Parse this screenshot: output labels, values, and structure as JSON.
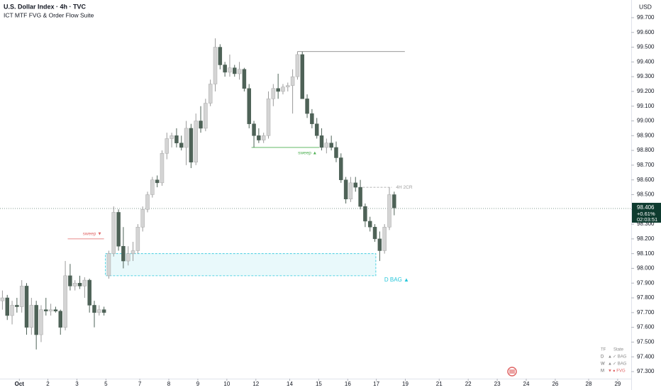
{
  "chart_data": {
    "type": "candlestick",
    "title": "U.S. Dollar Index · 4h · TVC",
    "subtitle": "ICT MTF FVG & Order Flow Suite",
    "y_axis_label": "USD",
    "up_color": "#d4d4d4",
    "down_color": "#4e6257",
    "ylim": [
      97.252,
      99.82
    ],
    "yticks": [
      {
        "value": 97.3,
        "label": "97.300"
      },
      {
        "value": 97.4,
        "label": "97.400"
      },
      {
        "value": 97.5,
        "label": "97.500"
      },
      {
        "value": 97.6,
        "label": "97.600"
      },
      {
        "value": 97.7,
        "label": "97.700"
      },
      {
        "value": 97.8,
        "label": "97.800"
      },
      {
        "value": 97.9,
        "label": "97.900"
      },
      {
        "value": 98.0,
        "label": "98.000"
      },
      {
        "value": 98.1,
        "label": "98.100"
      },
      {
        "value": 98.2,
        "label": "98.200"
      },
      {
        "value": 98.3,
        "label": "98.300"
      },
      {
        "value": 98.4,
        "label": "98.400"
      },
      {
        "value": 98.5,
        "label": "98.500"
      },
      {
        "value": 98.6,
        "label": "98.600"
      },
      {
        "value": 98.7,
        "label": "98.700"
      },
      {
        "value": 98.8,
        "label": "98.800"
      },
      {
        "value": 98.9,
        "label": "98.900"
      },
      {
        "value": 99.0,
        "label": "99.000"
      },
      {
        "value": 99.1,
        "label": "99.100"
      },
      {
        "value": 99.2,
        "label": "99.200"
      },
      {
        "value": 99.3,
        "label": "99.300"
      },
      {
        "value": 99.4,
        "label": "99.400"
      },
      {
        "value": 99.5,
        "label": "99.500"
      },
      {
        "value": 99.6,
        "label": "99.600"
      },
      {
        "value": 99.7,
        "label": "99.700"
      }
    ],
    "xlim": [
      -0.5,
      130
    ],
    "xticks": [
      {
        "value": 3.5,
        "label": "Oct"
      },
      {
        "value": 9.4,
        "label": "2"
      },
      {
        "value": 15.4,
        "label": "3"
      },
      {
        "value": 21.4,
        "label": "5"
      },
      {
        "value": 28.4,
        "label": "7"
      },
      {
        "value": 34.4,
        "label": "8"
      },
      {
        "value": 40.4,
        "label": "9"
      },
      {
        "value": 46.4,
        "label": "10"
      },
      {
        "value": 52.4,
        "label": "12"
      },
      {
        "value": 59.4,
        "label": "14"
      },
      {
        "value": 65.4,
        "label": "15"
      },
      {
        "value": 71.4,
        "label": "16"
      },
      {
        "value": 77.3,
        "label": "17"
      },
      {
        "value": 83.3,
        "label": "19"
      },
      {
        "value": 90.3,
        "label": "21"
      },
      {
        "value": 96.3,
        "label": "22"
      },
      {
        "value": 102.3,
        "label": "23"
      },
      {
        "value": 108.3,
        "label": "24"
      },
      {
        "value": 114.3,
        "label": "26"
      },
      {
        "value": 121.2,
        "label": "28"
      },
      {
        "value": 127.2,
        "label": "29"
      }
    ],
    "x": [
      0,
      1,
      2,
      3,
      4,
      5,
      6,
      7,
      8,
      9,
      10,
      11,
      12,
      13,
      14,
      15,
      16,
      17,
      18,
      19,
      20,
      21,
      22,
      23,
      24,
      25,
      26,
      27,
      28,
      29,
      30,
      31,
      32,
      33,
      34,
      35,
      36,
      37,
      38,
      39,
      40,
      41,
      42,
      43,
      44,
      45,
      46,
      47,
      48,
      49,
      50,
      51,
      52,
      53,
      54,
      55,
      56,
      57,
      58,
      59,
      60,
      61,
      62,
      63,
      64,
      65,
      66,
      67,
      68,
      69,
      70,
      71,
      72,
      73,
      74,
      75,
      76,
      77,
      78,
      79,
      80,
      81
    ],
    "open": [
      97.78,
      97.8,
      97.68,
      97.75,
      97.74,
      97.88,
      97.6,
      97.75,
      97.55,
      97.72,
      97.71,
      97.72,
      97.71,
      97.6,
      97.95,
      97.88,
      97.9,
      97.88,
      97.92,
      97.75,
      97.7,
      97.72,
      97.95,
      98.1,
      98.38,
      98.15,
      98.05,
      98.1,
      98.12,
      98.28,
      98.4,
      98.5,
      98.6,
      98.58,
      98.78,
      98.88,
      98.9,
      98.85,
      98.82,
      98.95,
      98.72,
      99.0,
      98.95,
      99.12,
      99.25,
      99.5,
      99.38,
      99.33,
      99.36,
      99.32,
      99.35,
      99.22,
      98.98,
      98.9,
      98.87,
      98.9,
      99.15,
      99.22,
      99.2,
      99.23,
      99.24,
      99.3,
      99.45,
      99.15,
      99.05,
      98.98,
      98.9,
      98.82,
      98.85,
      98.82,
      98.75,
      98.6,
      98.47,
      98.58,
      98.55,
      98.42,
      98.32,
      98.28,
      98.2,
      98.12,
      98.28,
      98.5
    ],
    "high": [
      97.85,
      97.82,
      97.78,
      97.8,
      97.92,
      97.9,
      97.8,
      97.78,
      97.75,
      97.8,
      97.76,
      97.74,
      97.72,
      98.05,
      98.03,
      97.92,
      97.95,
      97.94,
      97.93,
      97.78,
      97.75,
      97.74,
      98.12,
      98.42,
      98.4,
      98.28,
      98.15,
      98.18,
      98.3,
      98.42,
      98.52,
      98.62,
      98.63,
      98.8,
      98.92,
      98.92,
      98.95,
      98.9,
      99.0,
      98.98,
      99.05,
      99.1,
      99.15,
      99.28,
      99.56,
      99.52,
      99.4,
      99.45,
      99.38,
      99.4,
      99.36,
      99.25,
      99.0,
      98.95,
      98.92,
      99.2,
      99.25,
      99.32,
      99.25,
      99.26,
      99.35,
      99.47,
      99.47,
      99.18,
      99.08,
      99.02,
      98.95,
      98.88,
      98.9,
      98.86,
      98.78,
      98.62,
      98.62,
      98.62,
      98.6,
      98.44,
      98.35,
      98.3,
      98.25,
      98.3,
      98.55,
      98.52
    ],
    "low": [
      97.72,
      97.65,
      97.62,
      97.7,
      97.7,
      97.55,
      97.55,
      97.45,
      97.5,
      97.68,
      97.68,
      97.7,
      97.55,
      97.58,
      97.85,
      97.85,
      97.86,
      97.8,
      97.7,
      97.6,
      97.68,
      97.68,
      97.93,
      98.08,
      98.12,
      98.0,
      98.02,
      98.05,
      98.1,
      98.25,
      98.38,
      98.48,
      98.55,
      98.56,
      98.74,
      98.82,
      98.82,
      98.8,
      98.7,
      98.68,
      98.7,
      98.92,
      98.93,
      99.1,
      99.2,
      99.35,
      99.3,
      99.3,
      99.3,
      99.28,
      99.2,
      98.95,
      98.82,
      98.85,
      98.85,
      98.88,
      99.1,
      99.15,
      99.18,
      99.2,
      99.05,
      99.28,
      99.15,
      99.02,
      98.95,
      98.88,
      98.8,
      98.78,
      98.8,
      98.72,
      98.58,
      98.44,
      98.45,
      98.52,
      98.4,
      98.28,
      98.25,
      98.18,
      98.05,
      98.1,
      98.26,
      98.36
    ],
    "close": [
      97.8,
      97.68,
      97.75,
      97.74,
      97.88,
      97.6,
      97.75,
      97.55,
      97.72,
      97.71,
      97.72,
      97.71,
      97.6,
      97.95,
      97.88,
      97.9,
      97.88,
      97.92,
      97.75,
      97.7,
      97.72,
      97.7,
      98.1,
      98.38,
      98.15,
      98.05,
      98.1,
      98.12,
      98.28,
      98.4,
      98.5,
      98.6,
      98.58,
      98.78,
      98.88,
      98.9,
      98.85,
      98.82,
      98.95,
      98.72,
      99.0,
      98.95,
      99.12,
      99.25,
      99.5,
      99.38,
      99.33,
      99.36,
      99.32,
      99.35,
      99.22,
      98.98,
      98.9,
      98.87,
      98.9,
      99.15,
      99.22,
      99.2,
      99.23,
      99.24,
      99.3,
      99.45,
      99.15,
      99.05,
      98.98,
      98.9,
      98.82,
      98.85,
      98.82,
      98.75,
      98.6,
      98.47,
      98.58,
      98.55,
      98.42,
      98.32,
      98.28,
      98.2,
      98.12,
      98.28,
      98.5,
      98.41
    ],
    "last_price": {
      "value": 98.406,
      "change": "+0.61%",
      "countdown": "02:03:51",
      "color": "#0e3b2f"
    },
    "levels": [
      {
        "label": "sweep ▼",
        "y": 98.2,
        "x0": 13.5,
        "x1": 21,
        "color": "#e06666"
      },
      {
        "label": "sweep ▲",
        "y": 98.82,
        "x0": 51.5,
        "x1": 65.5,
        "color": "#4caf50"
      },
      {
        "label": "4H 2CR",
        "y": 98.55,
        "x0": 74.5,
        "x1": 80.5,
        "color": "#9e9e9e"
      },
      {
        "y": 99.47,
        "x0": 61,
        "x1": 83.2,
        "color": "#757575"
      }
    ],
    "zone": {
      "label": "D BAG ▲",
      "y0": 97.95,
      "y1": 98.1,
      "x0": 21.3,
      "x1": 77.2,
      "color": "#26c6da"
    },
    "state_table": {
      "header": [
        "TF",
        "State"
      ],
      "rows": [
        {
          "tf": "D",
          "arrow": "▲",
          "state": "✓ BAG",
          "color": "#8a8a8a"
        },
        {
          "tf": "W",
          "arrow": "▲",
          "state": "✓ BAG",
          "color": "#8a8a8a"
        },
        {
          "tf": "M",
          "arrow": "▼",
          "state": "● FVG",
          "color": "#e06666"
        }
      ]
    }
  }
}
